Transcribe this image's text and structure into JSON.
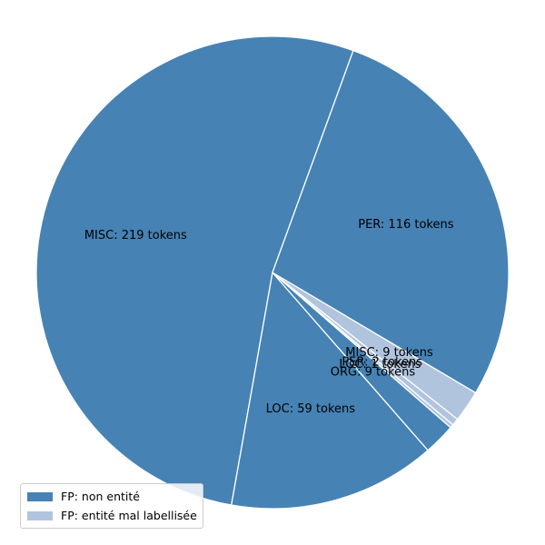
{
  "chart_data": {
    "type": "pie",
    "title": "",
    "slices": [
      {
        "category": "MISC",
        "group": "FP: non entité",
        "value": 219,
        "label": "MISC: 219 tokens",
        "color": "#4682b4"
      },
      {
        "category": "LOC",
        "group": "FP: non entité",
        "value": 59,
        "label": "LOC: 59 tokens",
        "color": "#4682b4"
      },
      {
        "category": "ORG",
        "group": "FP: non entité",
        "value": 9,
        "label": "ORG: 9 tokens",
        "color": "#4682b4"
      },
      {
        "category": "LOC",
        "group": "FP: entité mal labellisée",
        "value": 1,
        "label": "LOC: 1 tokens",
        "color": "#b0c4de"
      },
      {
        "category": "PER",
        "group": "FP: entité mal labellisée",
        "value": 2,
        "label": "PER: 2 tokens",
        "color": "#b0c4de"
      },
      {
        "category": "MISC",
        "group": "FP: entité mal labellisée",
        "value": 9,
        "label": "MISC: 9 tokens",
        "color": "#b0c4de"
      },
      {
        "category": "PER",
        "group": "FP: non entité",
        "value": 116,
        "label": "PER: 116 tokens",
        "color": "#4682b4"
      }
    ],
    "start_angle_deg": 70,
    "direction": "counterclockwise",
    "legend": {
      "placement": "lower-left",
      "entries": [
        {
          "label": "FP: non entité",
          "color": "#4682b4"
        },
        {
          "label": "FP: entité mal labellisée",
          "color": "#b0c4de"
        }
      ]
    }
  }
}
